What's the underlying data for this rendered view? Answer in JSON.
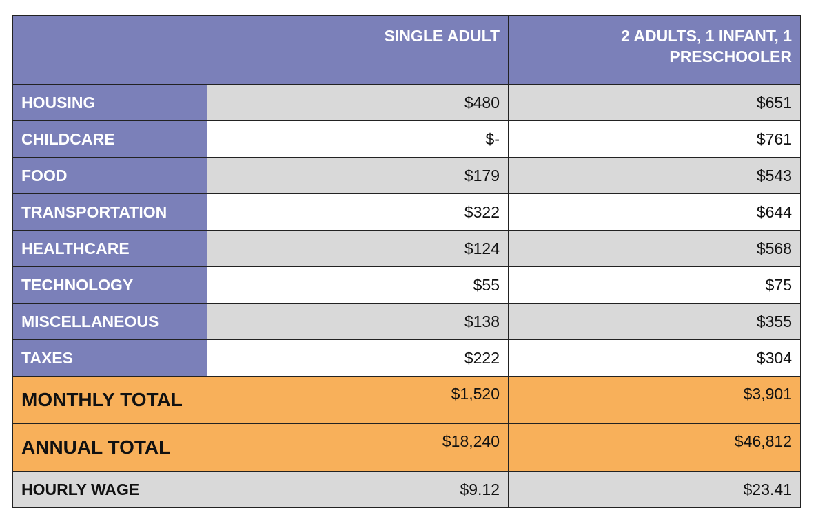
{
  "columns": {
    "corner": "",
    "single_adult": "SINGLE ADULT",
    "family_line1": "2 ADULTS, 1 INFANT, 1",
    "family_line2": "PRESCHOOLER"
  },
  "rows": [
    {
      "label": "HOUSING",
      "single_adult": "$480",
      "family": "$651"
    },
    {
      "label": "CHILDCARE",
      "single_adult": "$-",
      "family": "$761"
    },
    {
      "label": "FOOD",
      "single_adult": "$179",
      "family": "$543"
    },
    {
      "label": "TRANSPORTATION",
      "single_adult": "$322",
      "family": "$644"
    },
    {
      "label": "HEALTHCARE",
      "single_adult": "$124",
      "family": "$568"
    },
    {
      "label": "TECHNOLOGY",
      "single_adult": "$55",
      "family": "$75"
    },
    {
      "label": "MISCELLANEOUS",
      "single_adult": "$138",
      "family": "$355"
    },
    {
      "label": "TAXES",
      "single_adult": "$222",
      "family": "$304"
    }
  ],
  "totals": [
    {
      "label": "MONTHLY TOTAL",
      "single_adult": "$1,520",
      "family": "$3,901"
    },
    {
      "label": "ANNUAL TOTAL",
      "single_adult": "$18,240",
      "family": "$46,812"
    }
  ],
  "wage": {
    "label": "HOURLY WAGE",
    "single_adult": "$9.12",
    "family": "$23.41"
  },
  "colors": {
    "header_fill": "#7b80b9",
    "shaded_row": "#d9d9d9",
    "total_fill": "#f8b05a",
    "header_text": "#ffffff"
  }
}
